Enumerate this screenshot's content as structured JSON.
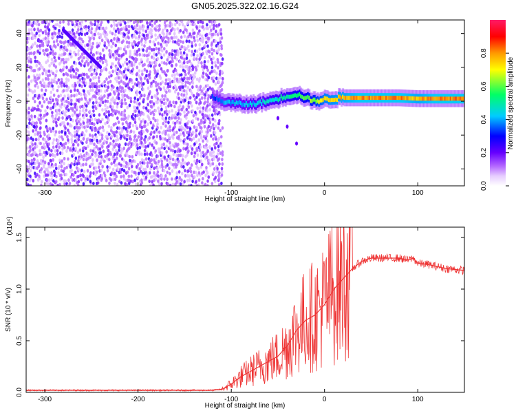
{
  "title": "GN05.2025.322.02.16.G24",
  "chart_data": [
    {
      "type": "heatmap",
      "xlabel": "Height of straight line (km)",
      "ylabel": "Frequency (Hz)",
      "xlim": [
        -320,
        150
      ],
      "ylim": [
        -50,
        48
      ],
      "xticks": [
        -300,
        -200,
        -100,
        0,
        100
      ],
      "yticks": [
        -40,
        -20,
        0,
        20,
        40
      ],
      "colorbar": {
        "label": "Normalized spectral amplitude",
        "range": [
          0,
          1
        ],
        "ticks": [
          0.0,
          0.2,
          0.4,
          0.6,
          0.8
        ],
        "colors": [
          "#ffffff",
          "#d9b3ff",
          "#8a2be2",
          "#3300ff",
          "#00ccff",
          "#33ff33",
          "#ffff00",
          "#ff9900",
          "#ff0000",
          "#ff0066"
        ]
      },
      "ridge": {
        "x": [
          -120,
          -110,
          -100,
          -80,
          -60,
          -40,
          -30,
          -20,
          -10,
          0,
          20,
          40,
          60,
          80,
          100,
          120,
          150
        ],
        "freq": [
          2,
          0,
          -1,
          -2,
          0,
          3,
          4,
          2,
          0,
          1,
          2,
          2,
          2,
          2,
          1.5,
          1.5,
          1.5
        ],
        "amplitude": [
          0.3,
          0.35,
          0.4,
          0.4,
          0.45,
          0.5,
          0.55,
          0.6,
          0.65,
          0.75,
          0.8,
          0.85,
          0.85,
          0.85,
          0.8,
          0.85,
          0.85
        ]
      },
      "noise_region_x": [
        -320,
        -110
      ],
      "diagonal_feature": {
        "x": [
          -280,
          -240
        ],
        "freq": [
          42,
          20
        ]
      },
      "spur_points": {
        "x": [
          -50,
          -40,
          -30
        ],
        "freq": [
          -10,
          -15,
          -25
        ]
      }
    },
    {
      "type": "line",
      "xlabel": "Height of straight line (km)",
      "ylabel": "SNR (10 * v/v)",
      "scale_label": "(x10⁴)",
      "xlim": [
        -320,
        150
      ],
      "ylim": [
        0,
        1.6
      ],
      "xticks": [
        -300,
        -200,
        -100,
        0,
        100
      ],
      "yticks": [
        0.0,
        0.5,
        1.0,
        1.5
      ],
      "color": "#ee3333",
      "series": [
        {
          "x": [
            -320,
            -250,
            -200,
            -150,
            -120,
            -110,
            -100,
            -90,
            -80,
            -70,
            -60,
            -50,
            -40,
            -30,
            -20,
            -10,
            0,
            10,
            20,
            30,
            40,
            50,
            60,
            70,
            80,
            90,
            95,
            100,
            110,
            120,
            130,
            140,
            150
          ],
          "values": [
            0.02,
            0.02,
            0.02,
            0.02,
            0.02,
            0.03,
            0.08,
            0.15,
            0.2,
            0.25,
            0.3,
            0.35,
            0.45,
            0.6,
            0.7,
            0.75,
            0.85,
            1.0,
            1.1,
            1.2,
            1.27,
            1.3,
            1.3,
            1.3,
            1.3,
            1.28,
            1.3,
            1.25,
            1.24,
            1.22,
            1.2,
            1.19,
            1.18
          ]
        }
      ]
    }
  ]
}
